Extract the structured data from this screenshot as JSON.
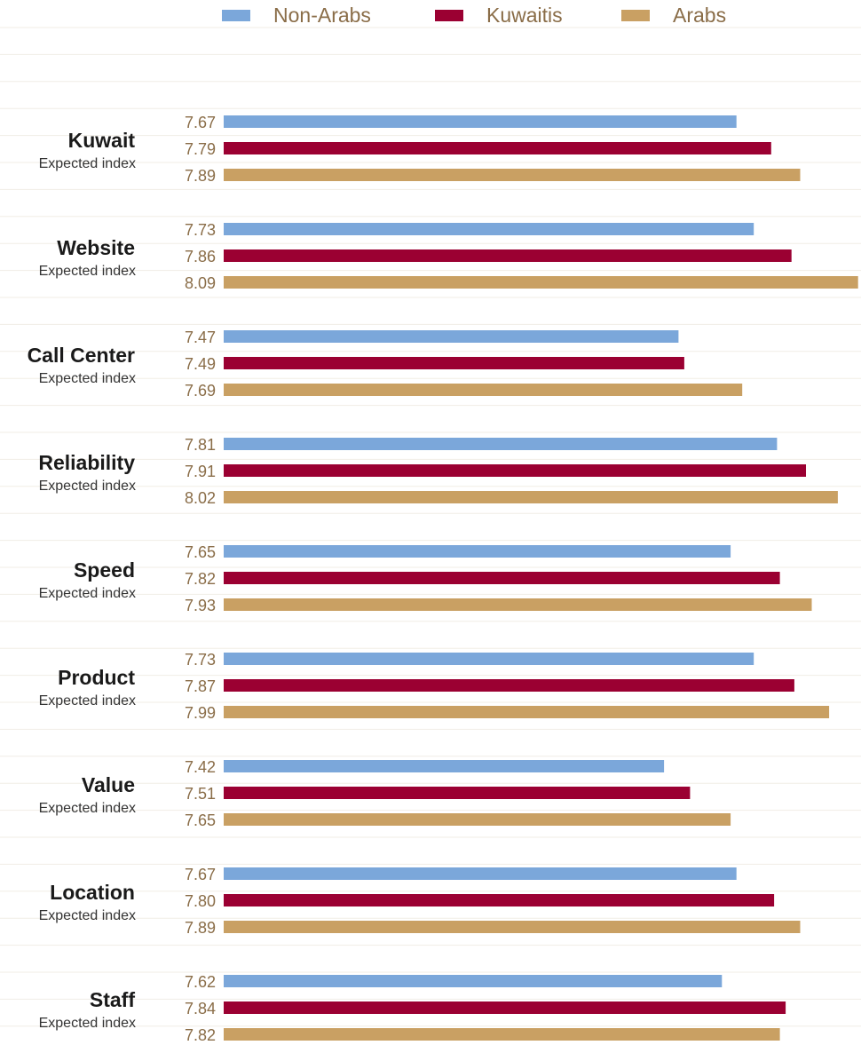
{
  "chart_data": {
    "type": "bar",
    "orientation": "horizontal",
    "legend_position": "top",
    "grid": true,
    "xlim": [
      5.9,
      8.1
    ],
    "series": [
      {
        "name": "Non-Arabs",
        "color": "#7ba7da",
        "values": [
          7.67,
          7.73,
          7.47,
          7.81,
          7.65,
          7.73,
          7.42,
          7.67,
          7.62
        ]
      },
      {
        "name": "Kuwaitis",
        "color": "#9b0032",
        "values": [
          7.79,
          7.86,
          7.49,
          7.91,
          7.82,
          7.87,
          7.51,
          7.8,
          7.84
        ]
      },
      {
        "name": "Arabs",
        "color": "#c9a063",
        "values": [
          7.89,
          8.09,
          7.69,
          8.02,
          7.93,
          7.99,
          7.65,
          7.89,
          7.82
        ]
      }
    ],
    "categories": [
      {
        "title": "Kuwait",
        "subtitle": "Expected index"
      },
      {
        "title": "Website",
        "subtitle": "Expected index"
      },
      {
        "title": "Call Center",
        "subtitle": "Expected index"
      },
      {
        "title": "Reliability",
        "subtitle": "Expected index"
      },
      {
        "title": "Speed",
        "subtitle": "Expected index"
      },
      {
        "title": "Product",
        "subtitle": "Expected index"
      },
      {
        "title": "Value",
        "subtitle": "Expected index"
      },
      {
        "title": "Location",
        "subtitle": "Expected index"
      },
      {
        "title": "Staff",
        "subtitle": "Expected index"
      }
    ],
    "value_labels": [
      [
        "7.67",
        "7.79",
        "7.89"
      ],
      [
        "7.73",
        "7.86",
        "8.09"
      ],
      [
        "7.47",
        "7.49",
        "7.69"
      ],
      [
        "7.81",
        "7.91",
        "8.02"
      ],
      [
        "7.65",
        "7.82",
        "7.93"
      ],
      [
        "7.73",
        "7.87",
        "7.99"
      ],
      [
        "7.42",
        "7.51",
        "7.65"
      ],
      [
        "7.67",
        "7.80",
        "7.89"
      ],
      [
        "7.62",
        "7.84",
        "7.82"
      ]
    ]
  }
}
